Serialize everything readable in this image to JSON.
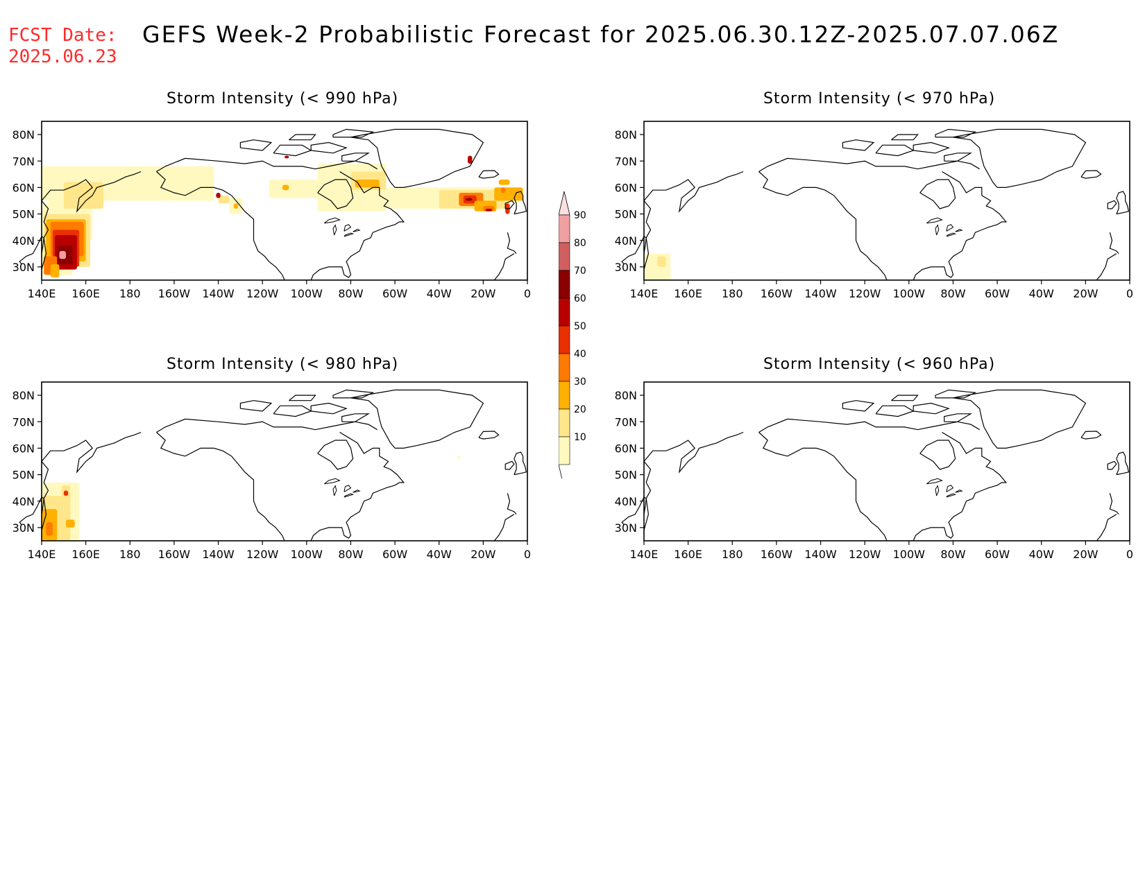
{
  "fcst": {
    "line1": "FCST Date:",
    "line2": "2025.06.23"
  },
  "title": "GEFS Week-2 Probabilistic Forecast for 2025.06.30.12Z-2025.07.07.06Z",
  "x_ticks": [
    "140E",
    "160E",
    "180",
    "160W",
    "140W",
    "120W",
    "100W",
    "80W",
    "60W",
    "40W",
    "20W",
    "0"
  ],
  "y_ticks": [
    "80N",
    "70N",
    "60N",
    "50N",
    "40N",
    "30N"
  ],
  "colorbar": {
    "levels": [
      "10",
      "20",
      "30",
      "40",
      "50",
      "60",
      "70",
      "80",
      "90"
    ],
    "colors": [
      "#fff9c0",
      "#ffe68a",
      "#ffb000",
      "#ff7a00",
      "#e83000",
      "#b80000",
      "#8b0000",
      "#d06060",
      "#f0a0a0",
      "#ffe0e0"
    ]
  },
  "panels": [
    {
      "title": "Storm Intensity (< 990 hPa)",
      "threshold_hpa": 990
    },
    {
      "title": "Storm Intensity (< 970 hPa)",
      "threshold_hpa": 970
    },
    {
      "title": "Storm Intensity (< 980 hPa)",
      "threshold_hpa": 980
    },
    {
      "title": "Storm Intensity (< 960 hPa)",
      "threshold_hpa": 960
    }
  ]
}
